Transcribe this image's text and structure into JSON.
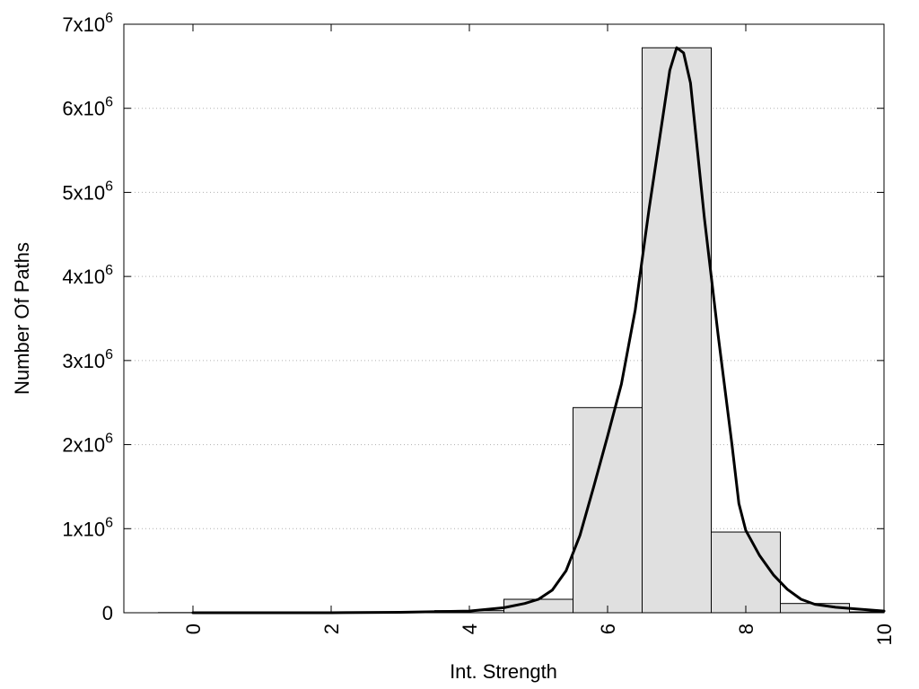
{
  "chart_data": {
    "type": "bar",
    "xlabel": "Int. Strength",
    "ylabel": "Number Of Paths",
    "xlim": [
      -1,
      10
    ],
    "ylim": [
      0,
      7000000
    ],
    "grid": "horizontal dotted",
    "x_ticks": [
      {
        "value": 0,
        "label": "0"
      },
      {
        "value": 2,
        "label": "2"
      },
      {
        "value": 4,
        "label": "4"
      },
      {
        "value": 6,
        "label": "6"
      },
      {
        "value": 8,
        "label": "8"
      },
      {
        "value": 10,
        "label": "10"
      }
    ],
    "y_ticks": [
      {
        "value": 0,
        "base": "0",
        "exp": ""
      },
      {
        "value": 1000000,
        "base": "1x10",
        "exp": "6"
      },
      {
        "value": 2000000,
        "base": "2x10",
        "exp": "6"
      },
      {
        "value": 3000000,
        "base": "3x10",
        "exp": "6"
      },
      {
        "value": 4000000,
        "base": "4x10",
        "exp": "6"
      },
      {
        "value": 5000000,
        "base": "5x10",
        "exp": "6"
      },
      {
        "value": 6000000,
        "base": "6x10",
        "exp": "6"
      },
      {
        "value": 7000000,
        "base": "7x10",
        "exp": "6"
      }
    ],
    "bar_width": 1,
    "histogram": [
      {
        "x": 0,
        "y": 2000
      },
      {
        "x": 1,
        "y": 3000
      },
      {
        "x": 2,
        "y": 4000
      },
      {
        "x": 3,
        "y": 7000
      },
      {
        "x": 4,
        "y": 25000
      },
      {
        "x": 5,
        "y": 160000
      },
      {
        "x": 6,
        "y": 2440000
      },
      {
        "x": 7,
        "y": 6720000
      },
      {
        "x": 8,
        "y": 960000
      },
      {
        "x": 9,
        "y": 110000
      },
      {
        "x": 10,
        "y": 10000
      }
    ],
    "fit_curve": [
      [
        0,
        0
      ],
      [
        1,
        0
      ],
      [
        2,
        0
      ],
      [
        3,
        5000
      ],
      [
        4,
        20000
      ],
      [
        4.5,
        60000
      ],
      [
        4.8,
        110000
      ],
      [
        5.0,
        160000
      ],
      [
        5.2,
        270000
      ],
      [
        5.4,
        500000
      ],
      [
        5.6,
        920000
      ],
      [
        5.8,
        1500000
      ],
      [
        6.0,
        2100000
      ],
      [
        6.2,
        2720000
      ],
      [
        6.4,
        3600000
      ],
      [
        6.6,
        4800000
      ],
      [
        6.8,
        5900000
      ],
      [
        6.9,
        6450000
      ],
      [
        7.0,
        6720000
      ],
      [
        7.1,
        6660000
      ],
      [
        7.2,
        6300000
      ],
      [
        7.3,
        5500000
      ],
      [
        7.4,
        4700000
      ],
      [
        7.6,
        3300000
      ],
      [
        7.8,
        2000000
      ],
      [
        7.9,
        1300000
      ],
      [
        8.0,
        980000
      ],
      [
        8.2,
        680000
      ],
      [
        8.4,
        450000
      ],
      [
        8.6,
        280000
      ],
      [
        8.8,
        160000
      ],
      [
        9.0,
        100000
      ],
      [
        9.3,
        65000
      ],
      [
        9.6,
        45000
      ],
      [
        10.0,
        20000
      ]
    ]
  }
}
